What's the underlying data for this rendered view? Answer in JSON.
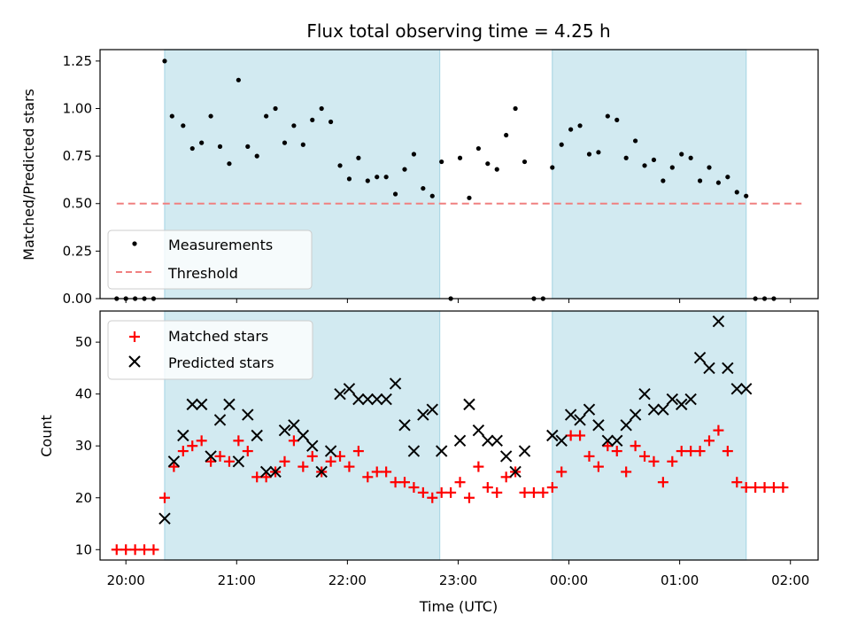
{
  "chart_data": [
    {
      "type": "scatter",
      "title": "Flux total observing time = 4.25 h",
      "ylabel": "Matched/Predicted stars",
      "xlabel": "",
      "xlim": [
        "19:46",
        "02:15"
      ],
      "ylim": [
        0,
        1.31
      ],
      "yticks": [
        "0.00",
        "0.25",
        "0.50",
        "0.75",
        "1.00",
        "1.25"
      ],
      "legend": "lower-left",
      "grid": false,
      "shaded_intervals": [
        [
          "20:21",
          "22:50"
        ],
        [
          "23:51",
          "01:36"
        ]
      ],
      "threshold": {
        "name": "Threshold",
        "y": 0.5,
        "x": [
          "19:55",
          "02:06"
        ],
        "color": "#f08080"
      },
      "series": [
        {
          "name": "Measurements",
          "color": "#000000",
          "points": [
            [
              "19:55",
              0.0
            ],
            [
              "20:00",
              0.0
            ],
            [
              "20:05",
              0.0
            ],
            [
              "20:10",
              0.0
            ],
            [
              "20:15",
              0.0
            ],
            [
              "20:21",
              1.25
            ],
            [
              "20:25",
              0.96
            ],
            [
              "20:31",
              0.91
            ],
            [
              "20:36",
              0.79
            ],
            [
              "20:41",
              0.82
            ],
            [
              "20:46",
              0.96
            ],
            [
              "20:51",
              0.8
            ],
            [
              "20:56",
              0.71
            ],
            [
              "21:01",
              1.15
            ],
            [
              "21:06",
              0.8
            ],
            [
              "21:11",
              0.75
            ],
            [
              "21:16",
              0.96
            ],
            [
              "21:21",
              1.0
            ],
            [
              "21:26",
              0.82
            ],
            [
              "21:31",
              0.91
            ],
            [
              "21:36",
              0.81
            ],
            [
              "21:41",
              0.94
            ],
            [
              "21:46",
              1.0
            ],
            [
              "21:51",
              0.93
            ],
            [
              "21:56",
              0.7
            ],
            [
              "22:01",
              0.63
            ],
            [
              "22:06",
              0.74
            ],
            [
              "22:11",
              0.62
            ],
            [
              "22:16",
              0.64
            ],
            [
              "22:21",
              0.64
            ],
            [
              "22:26",
              0.55
            ],
            [
              "22:31",
              0.68
            ],
            [
              "22:36",
              0.76
            ],
            [
              "22:41",
              0.58
            ],
            [
              "22:46",
              0.54
            ],
            [
              "22:51",
              0.72
            ],
            [
              "22:56",
              0.0
            ],
            [
              "23:01",
              0.74
            ],
            [
              "23:06",
              0.53
            ],
            [
              "23:11",
              0.79
            ],
            [
              "23:16",
              0.71
            ],
            [
              "23:21",
              0.68
            ],
            [
              "23:26",
              0.86
            ],
            [
              "23:31",
              1.0
            ],
            [
              "23:36",
              0.72
            ],
            [
              "23:41",
              0.0
            ],
            [
              "23:46",
              0.0
            ],
            [
              "23:51",
              0.69
            ],
            [
              "23:56",
              0.81
            ],
            [
              "00:01",
              0.89
            ],
            [
              "00:06",
              0.91
            ],
            [
              "00:11",
              0.76
            ],
            [
              "00:16",
              0.77
            ],
            [
              "00:21",
              0.96
            ],
            [
              "00:26",
              0.94
            ],
            [
              "00:31",
              0.74
            ],
            [
              "00:36",
              0.83
            ],
            [
              "00:41",
              0.7
            ],
            [
              "00:46",
              0.73
            ],
            [
              "00:51",
              0.62
            ],
            [
              "00:56",
              0.69
            ],
            [
              "01:01",
              0.76
            ],
            [
              "01:06",
              0.74
            ],
            [
              "01:11",
              0.62
            ],
            [
              "01:16",
              0.69
            ],
            [
              "01:21",
              0.61
            ],
            [
              "01:26",
              0.64
            ],
            [
              "01:31",
              0.56
            ],
            [
              "01:36",
              0.54
            ],
            [
              "01:41",
              0.0
            ],
            [
              "01:46",
              0.0
            ],
            [
              "01:51",
              0.0
            ]
          ]
        }
      ]
    },
    {
      "type": "scatter",
      "title": "",
      "ylabel": "Count",
      "xlabel": "Time (UTC)",
      "xlim": [
        "19:46",
        "02:15"
      ],
      "ylim": [
        8,
        56
      ],
      "yticks": [
        "10",
        "20",
        "30",
        "40",
        "50"
      ],
      "xticks": [
        "20:00",
        "21:00",
        "22:00",
        "23:00",
        "00:00",
        "01:00",
        "02:00"
      ],
      "legend": "top-left",
      "grid": false,
      "shaded_intervals": [
        [
          "20:21",
          "22:50"
        ],
        [
          "23:51",
          "01:36"
        ]
      ],
      "series": [
        {
          "name": "Matched stars",
          "marker": "plus",
          "color": "#ff0000",
          "points": [
            [
              "19:55",
              10
            ],
            [
              "20:00",
              10
            ],
            [
              "20:05",
              10
            ],
            [
              "20:10",
              10
            ],
            [
              "20:15",
              10
            ],
            [
              "20:21",
              20
            ],
            [
              "20:26",
              26
            ],
            [
              "20:31",
              29
            ],
            [
              "20:36",
              30
            ],
            [
              "20:41",
              31
            ],
            [
              "20:46",
              27
            ],
            [
              "20:51",
              28
            ],
            [
              "20:56",
              27
            ],
            [
              "21:01",
              31
            ],
            [
              "21:06",
              29
            ],
            [
              "21:11",
              24
            ],
            [
              "21:16",
              24
            ],
            [
              "21:21",
              25
            ],
            [
              "21:26",
              27
            ],
            [
              "21:31",
              31
            ],
            [
              "21:36",
              26
            ],
            [
              "21:41",
              28
            ],
            [
              "21:46",
              25
            ],
            [
              "21:51",
              27
            ],
            [
              "21:56",
              28
            ],
            [
              "22:01",
              26
            ],
            [
              "22:06",
              29
            ],
            [
              "22:11",
              24
            ],
            [
              "22:16",
              25
            ],
            [
              "22:21",
              25
            ],
            [
              "22:26",
              23
            ],
            [
              "22:31",
              23
            ],
            [
              "22:36",
              22
            ],
            [
              "22:41",
              21
            ],
            [
              "22:46",
              20
            ],
            [
              "22:51",
              21
            ],
            [
              "22:56",
              21
            ],
            [
              "23:01",
              23
            ],
            [
              "23:06",
              20
            ],
            [
              "23:11",
              26
            ],
            [
              "23:16",
              22
            ],
            [
              "23:21",
              21
            ],
            [
              "23:26",
              24
            ],
            [
              "23:31",
              25
            ],
            [
              "23:36",
              21
            ],
            [
              "23:41",
              21
            ],
            [
              "23:46",
              21
            ],
            [
              "23:51",
              22
            ],
            [
              "23:56",
              25
            ],
            [
              "00:01",
              32
            ],
            [
              "00:06",
              32
            ],
            [
              "00:11",
              28
            ],
            [
              "00:16",
              26
            ],
            [
              "00:21",
              30
            ],
            [
              "00:26",
              29
            ],
            [
              "00:31",
              25
            ],
            [
              "00:36",
              30
            ],
            [
              "00:41",
              28
            ],
            [
              "00:46",
              27
            ],
            [
              "00:51",
              23
            ],
            [
              "00:56",
              27
            ],
            [
              "01:01",
              29
            ],
            [
              "01:06",
              29
            ],
            [
              "01:11",
              29
            ],
            [
              "01:16",
              31
            ],
            [
              "01:21",
              33
            ],
            [
              "01:26",
              29
            ],
            [
              "01:31",
              23
            ],
            [
              "01:36",
              22
            ],
            [
              "01:41",
              22
            ],
            [
              "01:46",
              22
            ],
            [
              "01:51",
              22
            ],
            [
              "01:56",
              22
            ]
          ]
        },
        {
          "name": "Predicted stars",
          "marker": "x",
          "color": "#000000",
          "points": [
            [
              "20:21",
              16
            ],
            [
              "20:26",
              27
            ],
            [
              "20:31",
              32
            ],
            [
              "20:36",
              38
            ],
            [
              "20:41",
              38
            ],
            [
              "20:46",
              28
            ],
            [
              "20:51",
              35
            ],
            [
              "20:56",
              38
            ],
            [
              "21:01",
              27
            ],
            [
              "21:06",
              36
            ],
            [
              "21:11",
              32
            ],
            [
              "21:16",
              25
            ],
            [
              "21:21",
              25
            ],
            [
              "21:26",
              33
            ],
            [
              "21:31",
              34
            ],
            [
              "21:36",
              32
            ],
            [
              "21:41",
              30
            ],
            [
              "21:46",
              25
            ],
            [
              "21:51",
              29
            ],
            [
              "21:56",
              40
            ],
            [
              "22:01",
              41
            ],
            [
              "22:06",
              39
            ],
            [
              "22:11",
              39
            ],
            [
              "22:16",
              39
            ],
            [
              "22:21",
              39
            ],
            [
              "22:26",
              42
            ],
            [
              "22:31",
              34
            ],
            [
              "22:36",
              29
            ],
            [
              "22:41",
              36
            ],
            [
              "22:46",
              37
            ],
            [
              "22:51",
              29
            ],
            [
              "23:01",
              31
            ],
            [
              "23:06",
              38
            ],
            [
              "23:11",
              33
            ],
            [
              "23:16",
              31
            ],
            [
              "23:21",
              31
            ],
            [
              "23:26",
              28
            ],
            [
              "23:31",
              25
            ],
            [
              "23:36",
              29
            ],
            [
              "23:51",
              32
            ],
            [
              "23:56",
              31
            ],
            [
              "00:01",
              36
            ],
            [
              "00:06",
              35
            ],
            [
              "00:11",
              37
            ],
            [
              "00:16",
              34
            ],
            [
              "00:21",
              31
            ],
            [
              "00:26",
              31
            ],
            [
              "00:31",
              34
            ],
            [
              "00:36",
              36
            ],
            [
              "00:41",
              40
            ],
            [
              "00:46",
              37
            ],
            [
              "00:51",
              37
            ],
            [
              "00:56",
              39
            ],
            [
              "01:01",
              38
            ],
            [
              "01:06",
              39
            ],
            [
              "01:11",
              47
            ],
            [
              "01:16",
              45
            ],
            [
              "01:21",
              54
            ],
            [
              "01:26",
              45
            ],
            [
              "01:31",
              41
            ],
            [
              "01:36",
              41
            ]
          ]
        }
      ]
    }
  ],
  "colors": {
    "shade": "#add8e6",
    "threshold": "#f08080",
    "matched": "#ff0000",
    "predicted": "#000000",
    "measurement": "#000000"
  }
}
